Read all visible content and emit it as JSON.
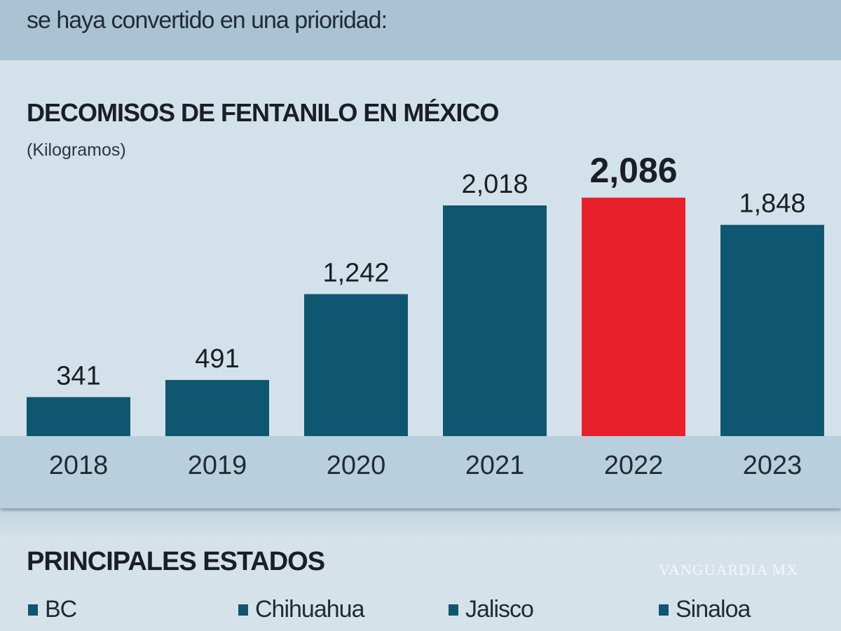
{
  "intro_text": "se haya convertido en una prioridad:",
  "chart_data": {
    "type": "bar",
    "title": "DECOMISOS DE FENTANILO EN MÉXICO",
    "subtitle": "(Kilogramos)",
    "categories": [
      "2018",
      "2019",
      "2020",
      "2021",
      "2022",
      "2023"
    ],
    "values": [
      341,
      491,
      1242,
      2018,
      2086,
      1848
    ],
    "value_labels": [
      "341",
      "491",
      "1,242",
      "2,018",
      "2,086",
      "1,848"
    ],
    "highlight": "2022",
    "colors": {
      "bar": "#0f5670",
      "highlight": "#e8202a"
    }
  },
  "states": {
    "title": "PRINCIPALES ESTADOS",
    "items": [
      "BC",
      "Chihuahua",
      "Jalisco",
      "Sinaloa"
    ],
    "swatch_color": "#0f5670"
  },
  "watermark": "VANGUARDIA MX"
}
